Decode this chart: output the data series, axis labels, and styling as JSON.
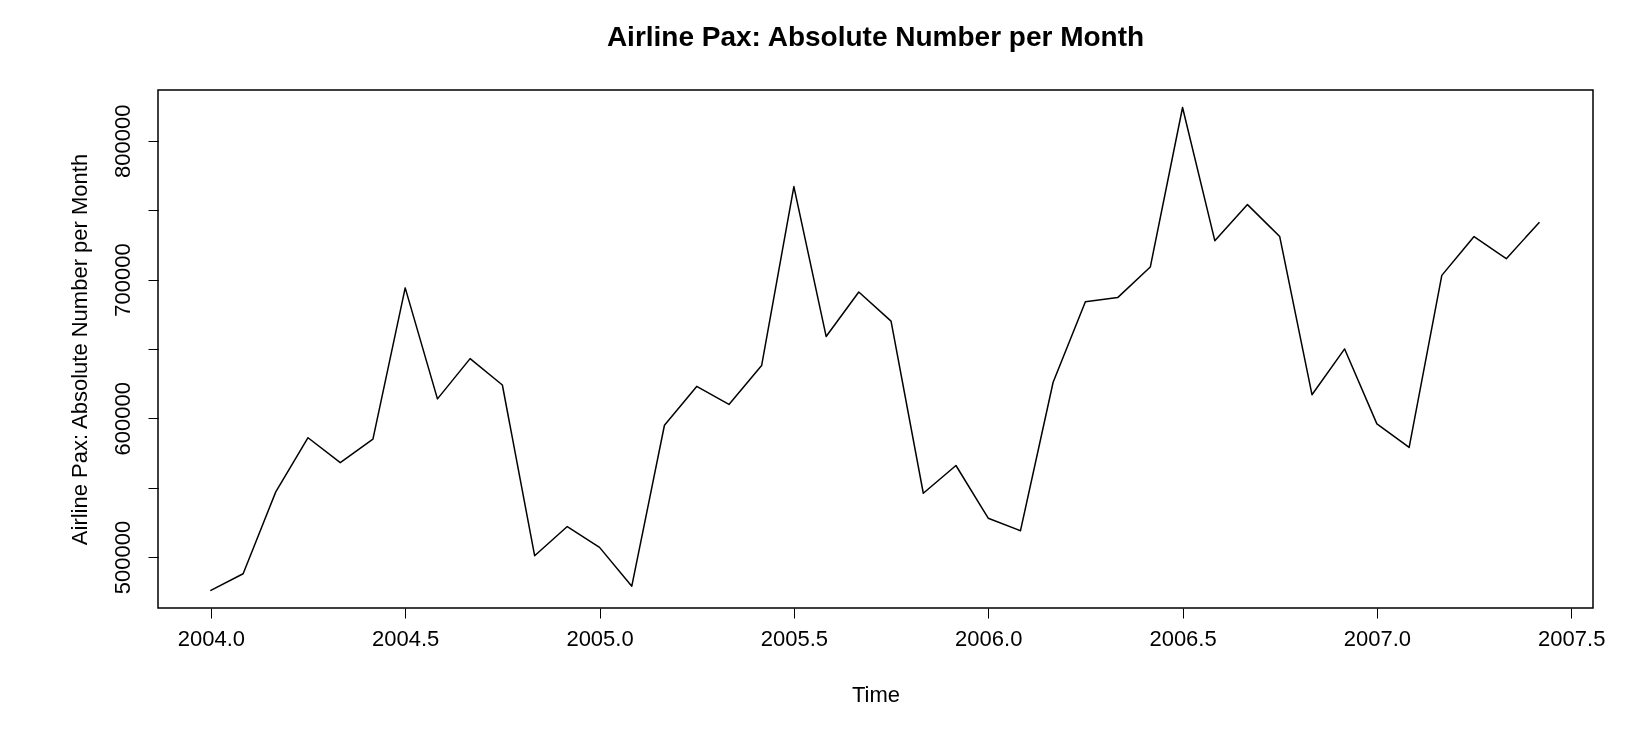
{
  "chart_data": {
    "type": "line",
    "title": "Airline Pax: Absolute Number per Month",
    "xlabel": "Time",
    "ylabel": "Airline Pax: Absolute Number per Month",
    "x": [
      2004.0,
      2004.083,
      2004.167,
      2004.25,
      2004.333,
      2004.417,
      2004.5,
      2004.583,
      2004.667,
      2004.75,
      2004.833,
      2004.917,
      2005.0,
      2005.083,
      2005.167,
      2005.25,
      2005.333,
      2005.417,
      2005.5,
      2005.583,
      2005.667,
      2005.75,
      2005.833,
      2005.917,
      2006.0,
      2006.083,
      2006.167,
      2006.25,
      2006.333,
      2006.417,
      2006.5,
      2006.583,
      2006.667,
      2006.75,
      2006.833,
      2006.917,
      2007.0,
      2007.083,
      2007.167,
      2007.25,
      2007.333,
      2007.417
    ],
    "series": [
      {
        "color": "#000000",
        "values": [
          476000,
          488000,
          547000,
          586000,
          568000,
          585000,
          694000,
          614000,
          643000,
          624000,
          501000,
          522000,
          507000,
          479000,
          595000,
          623000,
          610000,
          638000,
          767000,
          659000,
          691000,
          670000,
          546000,
          566000,
          528000,
          519000,
          626000,
          684000,
          687000,
          709000,
          824000,
          728000,
          754000,
          731000,
          617000,
          650000,
          596000,
          579000,
          703000,
          731000,
          715000,
          741000
        ]
      }
    ],
    "xlim": [
      2003.864,
      2007.556
    ],
    "ylim": [
      463300,
      836600
    ],
    "xticks": [
      {
        "value": 2004,
        "label": "2004.0"
      },
      {
        "value": 2004.5,
        "label": "2004.5"
      },
      {
        "value": 2005,
        "label": "2005.0"
      },
      {
        "value": 2005.5,
        "label": "2005.5"
      },
      {
        "value": 2006,
        "label": "2006.0"
      },
      {
        "value": 2006.5,
        "label": "2006.5"
      },
      {
        "value": 2007,
        "label": "2007.0"
      },
      {
        "value": 2007.5,
        "label": "2007.5"
      }
    ],
    "yticks": [
      500000,
      {
        "value": 550000,
        "label": null
      },
      600000,
      {
        "value": 650000,
        "label": null
      },
      700000,
      {
        "value": 750000,
        "label": null
      },
      800000
    ],
    "grid": false,
    "marker": "none",
    "line_style": "solid"
  }
}
